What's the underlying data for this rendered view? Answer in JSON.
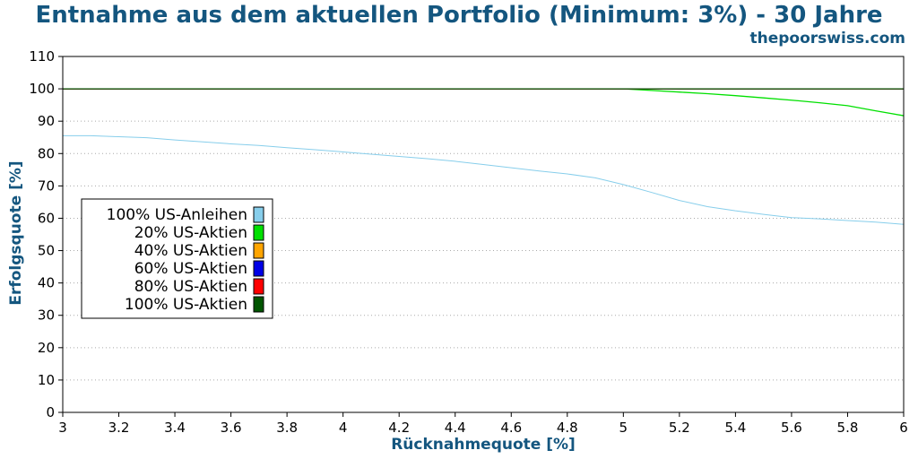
{
  "chart_data": {
    "type": "line",
    "title": "Entnahme aus dem aktuellen Portfolio (Minimum: 3%) - 30 Jahre",
    "subtitle": "thepoorswiss.com",
    "xlabel": "Rücknahmequote [%]",
    "ylabel": "Erfolgsquote [%]",
    "xlim": [
      3,
      6
    ],
    "ylim": [
      0,
      110
    ],
    "xticks": [
      "3",
      "3.2",
      "3.4",
      "3.6",
      "3.8",
      "4",
      "4.2",
      "4.4",
      "4.6",
      "4.8",
      "5",
      "5.2",
      "5.4",
      "5.6",
      "5.8",
      "6"
    ],
    "yticks": [
      "0",
      "10",
      "20",
      "30",
      "40",
      "50",
      "60",
      "70",
      "80",
      "90",
      "100",
      "110"
    ],
    "grid": true,
    "legend_position": "left-center",
    "title_color": "#14567f",
    "series": [
      {
        "name": "100% US-Anleihen",
        "color": "#87ceeb",
        "points": [
          [
            3.0,
            85.5
          ],
          [
            3.1,
            85.5
          ],
          [
            3.2,
            85.2
          ],
          [
            3.3,
            84.9
          ],
          [
            3.4,
            84.2
          ],
          [
            3.5,
            83.6
          ],
          [
            3.6,
            83.0
          ],
          [
            3.7,
            82.5
          ],
          [
            3.8,
            81.8
          ],
          [
            3.9,
            81.2
          ],
          [
            4.0,
            80.5
          ],
          [
            4.1,
            79.8
          ],
          [
            4.2,
            79.1
          ],
          [
            4.3,
            78.4
          ],
          [
            4.4,
            77.6
          ],
          [
            4.5,
            76.6
          ],
          [
            4.6,
            75.6
          ],
          [
            4.7,
            74.6
          ],
          [
            4.8,
            73.7
          ],
          [
            4.9,
            72.5
          ],
          [
            5.0,
            70.4
          ],
          [
            5.1,
            68.0
          ],
          [
            5.2,
            65.5
          ],
          [
            5.3,
            63.6
          ],
          [
            5.4,
            62.3
          ],
          [
            5.5,
            61.2
          ],
          [
            5.6,
            60.2
          ],
          [
            5.7,
            59.8
          ],
          [
            5.8,
            59.3
          ],
          [
            5.9,
            58.8
          ],
          [
            6.0,
            58.1
          ]
        ]
      },
      {
        "name": "20% US-Aktien",
        "color": "#00e000",
        "points": [
          [
            3.0,
            100
          ],
          [
            5.0,
            100
          ],
          [
            5.1,
            99.5
          ],
          [
            5.2,
            99.0
          ],
          [
            5.3,
            98.5
          ],
          [
            5.4,
            97.9
          ],
          [
            5.5,
            97.2
          ],
          [
            5.6,
            96.5
          ],
          [
            5.7,
            95.7
          ],
          [
            5.8,
            94.8
          ],
          [
            5.9,
            93.2
          ],
          [
            6.0,
            91.7
          ]
        ]
      },
      {
        "name": "40% US-Aktien",
        "color": "#ffa500",
        "points": [
          [
            3.0,
            100
          ],
          [
            6.0,
            100
          ]
        ]
      },
      {
        "name": "60% US-Aktien",
        "color": "#0000e6",
        "points": [
          [
            3.0,
            100
          ],
          [
            6.0,
            100
          ]
        ]
      },
      {
        "name": "80% US-Aktien",
        "color": "#ff0000",
        "points": [
          [
            3.0,
            100
          ],
          [
            6.0,
            100
          ]
        ]
      },
      {
        "name": "100% US-Aktien",
        "color": "#005500",
        "points": [
          [
            3.0,
            100
          ],
          [
            6.0,
            100
          ]
        ]
      }
    ]
  }
}
